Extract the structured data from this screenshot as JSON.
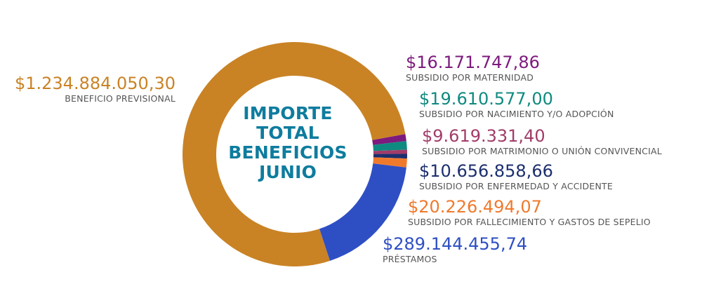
{
  "chart_data": {
    "type": "pie",
    "variant": "donut",
    "title": [
      "IMPORTE",
      "TOTAL",
      "BENEFICIOS",
      "JUNIO"
    ],
    "title_color": "#0e7c9e",
    "slices": [
      {
        "amount_label": "$16.171.747,86",
        "label": "SUBSIDIO POR MATERNIDAD",
        "value": 16171747.86,
        "color": "#7d1a7d"
      },
      {
        "amount_label": "$19.610.577,00",
        "label": "SUBSIDIO POR NACIMIENTO Y/O ADOPCIÓN",
        "value": 19610577.0,
        "color": "#0f8a80"
      },
      {
        "amount_label": "$9.619.331,40",
        "label": "SUBSIDIO POR MATRIMONIO O UNIÓN CONVIVENCIAL",
        "value": 9619331.4,
        "color": "#a23c68"
      },
      {
        "amount_label": "$10.656.858,66",
        "label": "SUBSIDIO POR ENFERMEDAD Y ACCIDENTE",
        "value": 10656858.66,
        "color": "#1c2f6e"
      },
      {
        "amount_label": "$20.226.494,07",
        "label": "SUBSIDIO POR FALLECIMIENTO Y GASTOS DE SEPELIO",
        "value": 20226494.07,
        "color": "#f07a2c"
      },
      {
        "amount_label": "$289.144.455,74",
        "label": "PRÉSTAMOS",
        "value": 289144455.74,
        "color": "#2e4fc4"
      },
      {
        "amount_label": "$1.234.884.050,30",
        "label": "BENEFICIO PREVISIONAL",
        "value": 1234884050.3,
        "color": "#c98325"
      }
    ]
  }
}
